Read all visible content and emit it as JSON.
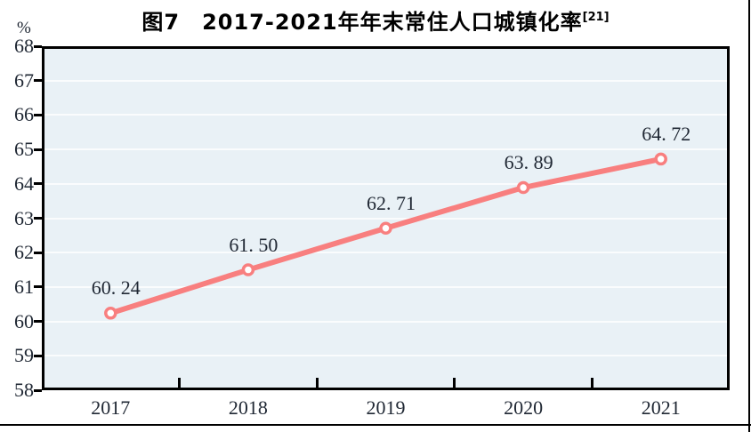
{
  "title": {
    "text": "图7　2017-2021年年末常住人口城镇化率",
    "superscript": "[21]"
  },
  "y_axis": {
    "unit": "%",
    "tick_labels": [
      "58",
      "59",
      "60",
      "61",
      "62",
      "63",
      "64",
      "65",
      "66",
      "67",
      "68"
    ]
  },
  "x_axis": {
    "tick_labels": [
      "2017",
      "2018",
      "2019",
      "2020",
      "2021"
    ]
  },
  "chart_data": {
    "type": "line",
    "title": "图7 2017-2021年年末常住人口城镇化率[21]",
    "categories": [
      "2017",
      "2018",
      "2019",
      "2020",
      "2021"
    ],
    "values": [
      60.24,
      61.5,
      62.71,
      63.89,
      64.72
    ],
    "point_labels": [
      "60. 24",
      "61. 50",
      "62. 71",
      "63. 89",
      "64. 72"
    ],
    "xlabel": "",
    "ylabel": "%",
    "ylim": [
      58,
      68
    ],
    "ytick_step": 1,
    "grid": "horizontal-white-on-lightblue",
    "legend": "none",
    "line_color": "#f87f7f",
    "marker_fill": "#ffffff",
    "marker_stroke": "#f87f7f",
    "plot_bg": "#e9f1f6",
    "gridline_color": "#fafcfd",
    "axis_color": "#000000",
    "label_color": "#1f2733"
  }
}
